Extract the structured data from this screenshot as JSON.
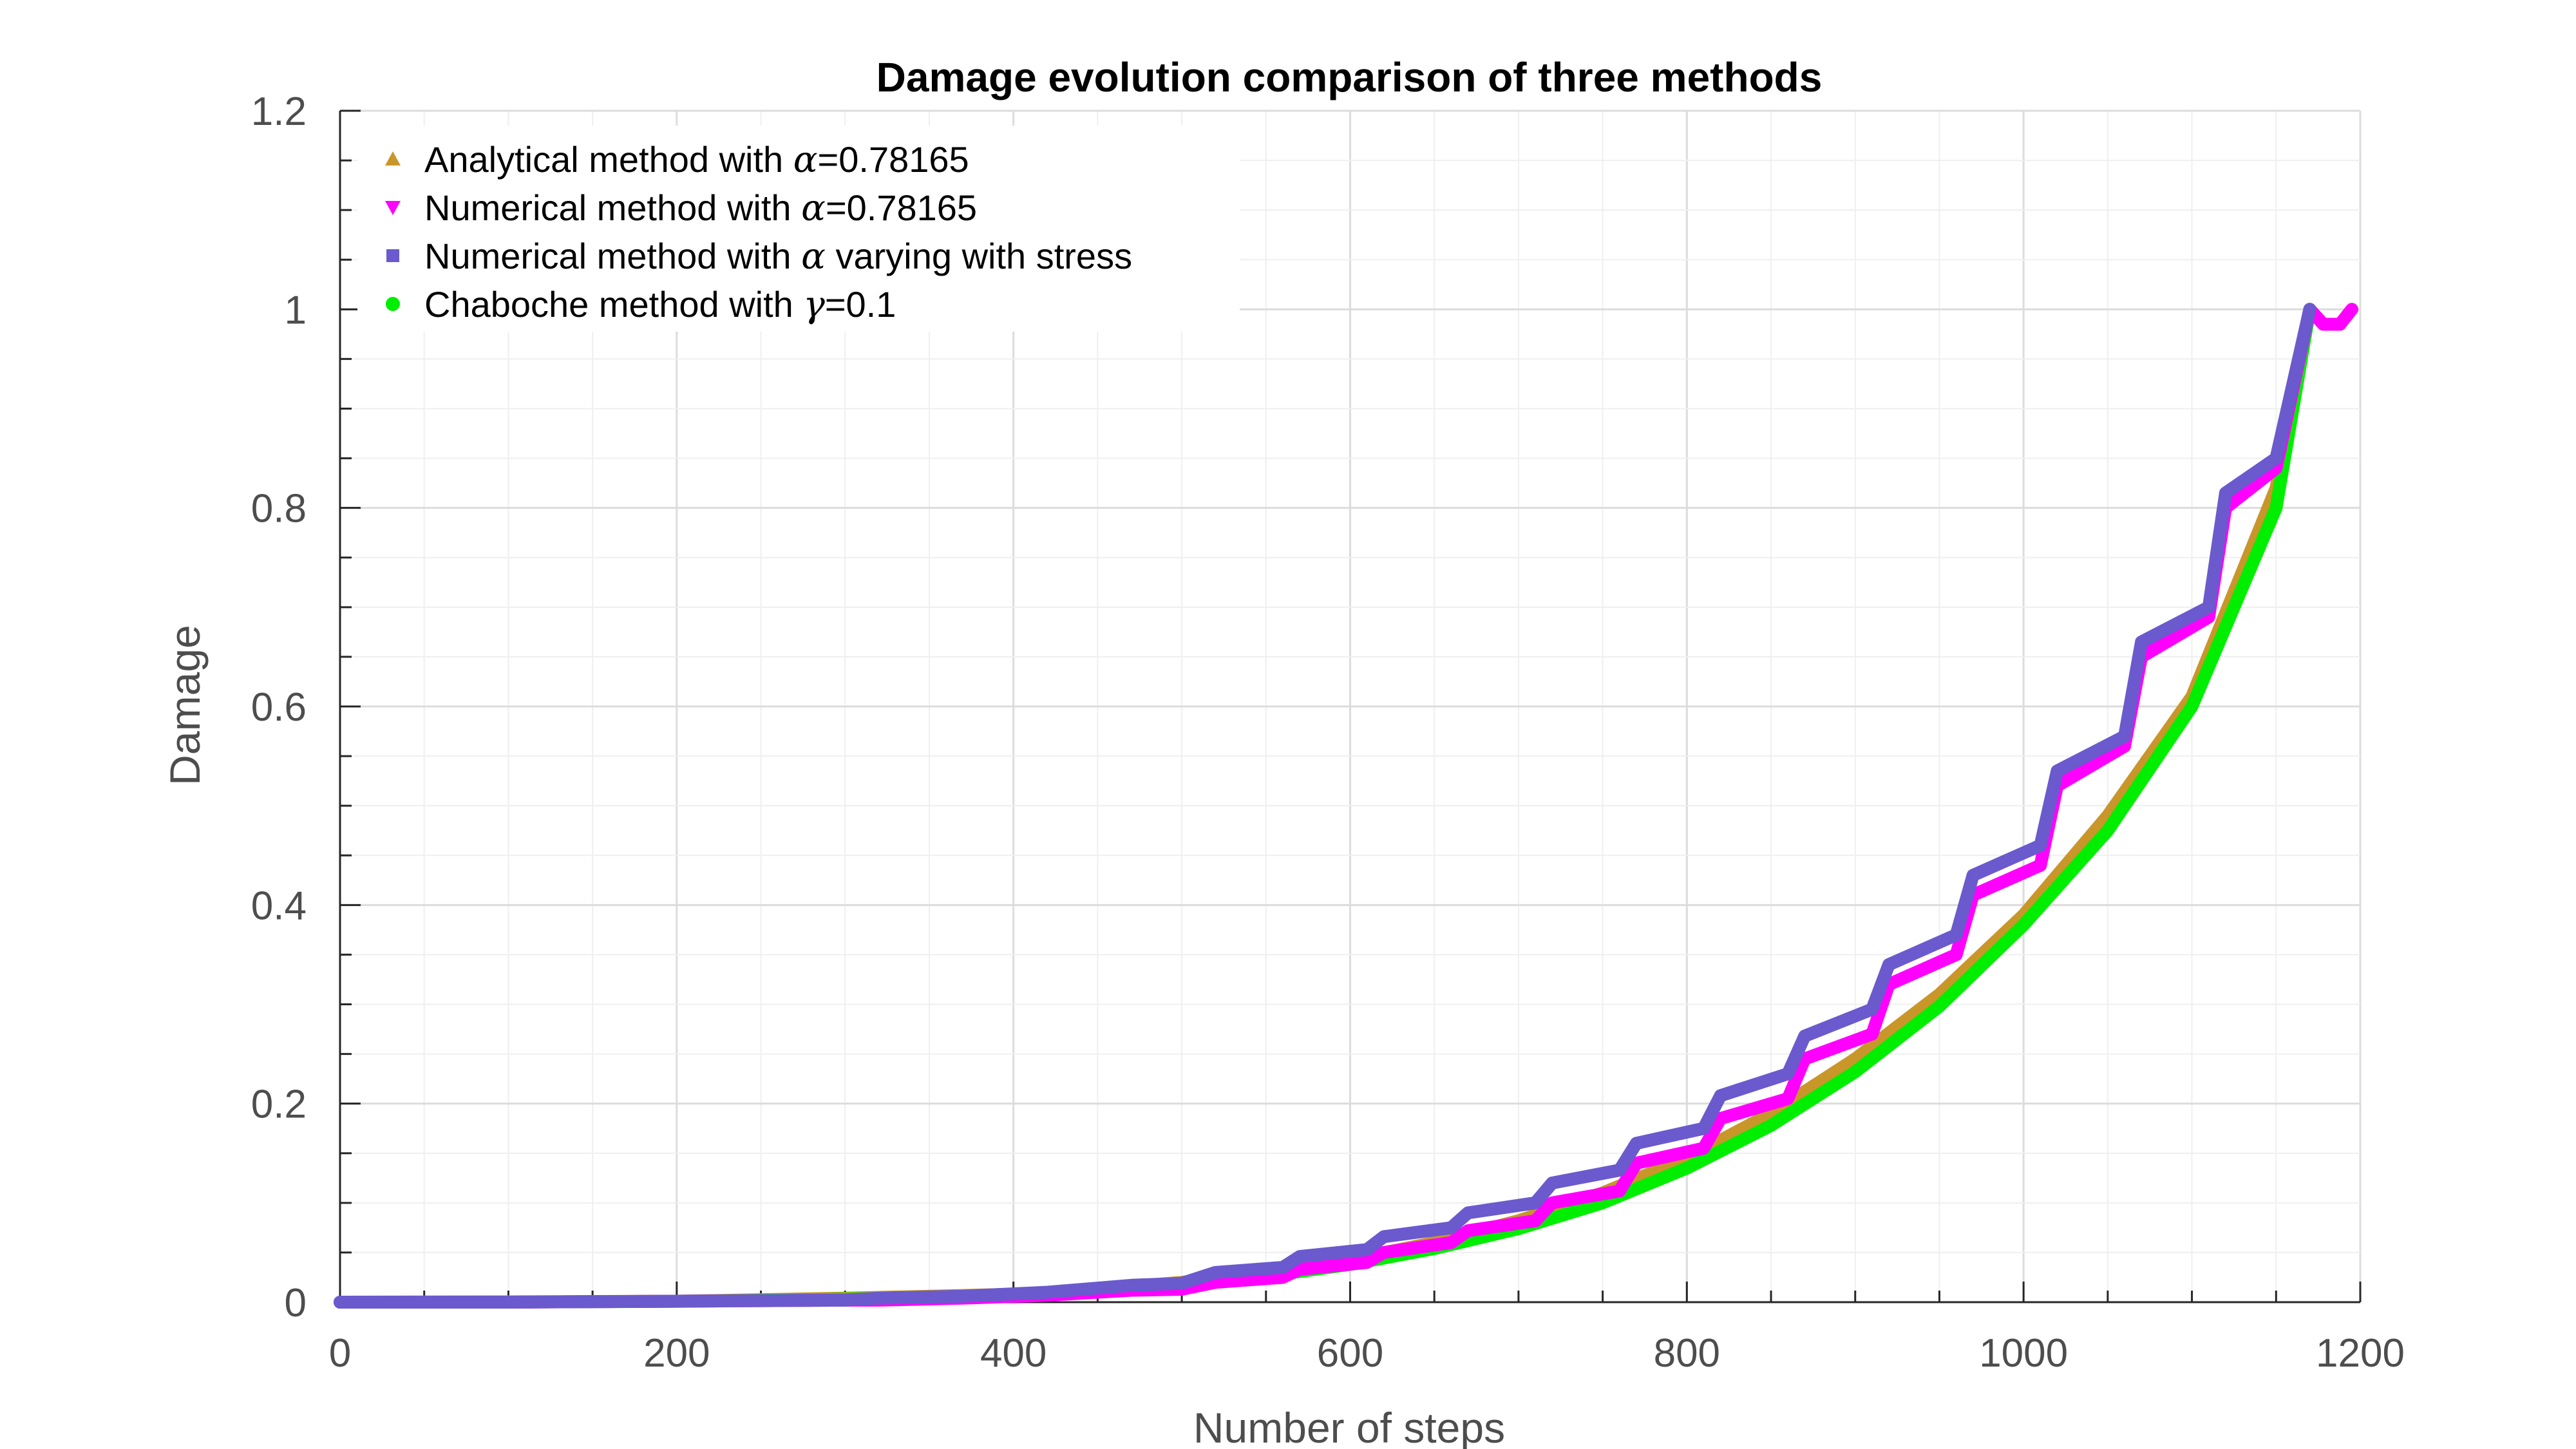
{
  "chart_data": {
    "type": "line",
    "title": "Damage evolution comparison of three methods",
    "xlabel": "Number of steps",
    "ylabel": "Damage",
    "xlim": [
      0,
      1200
    ],
    "ylim": [
      0,
      1.2
    ],
    "xticks": [
      "0",
      "200",
      "400",
      "600",
      "800",
      "1000",
      "1200"
    ],
    "yticks": [
      "0",
      "0.2",
      "0.4",
      "0.6",
      "0.8",
      "1",
      "1.2"
    ],
    "grid": true,
    "legend_position": "top-left",
    "series": [
      {
        "name_prefix": "Analytical method with ",
        "name_symbol": "α",
        "name_suffix": "=0.78165",
        "color": "#C9962A",
        "marker": "triangle-up",
        "points": [
          [
            0,
            0
          ],
          [
            100,
            0.0003
          ],
          [
            200,
            0.001
          ],
          [
            300,
            0.004
          ],
          [
            400,
            0.008
          ],
          [
            450,
            0.013
          ],
          [
            500,
            0.02
          ],
          [
            550,
            0.03
          ],
          [
            600,
            0.043
          ],
          [
            650,
            0.06
          ],
          [
            700,
            0.082
          ],
          [
            750,
            0.11
          ],
          [
            800,
            0.145
          ],
          [
            850,
            0.19
          ],
          [
            900,
            0.245
          ],
          [
            950,
            0.31
          ],
          [
            1000,
            0.39
          ],
          [
            1050,
            0.49
          ],
          [
            1100,
            0.61
          ],
          [
            1150,
            0.82
          ],
          [
            1170,
            1.0
          ]
        ]
      },
      {
        "name_prefix": "Numerical method with ",
        "name_symbol": "α",
        "name_suffix": "=0.78165",
        "color": "#FF00FF",
        "marker": "triangle-down",
        "points": [
          [
            0,
            0
          ],
          [
            100,
            0
          ],
          [
            200,
            0.001
          ],
          [
            300,
            0.002
          ],
          [
            320,
            0.002
          ],
          [
            370,
            0.004
          ],
          [
            420,
            0.007
          ],
          [
            470,
            0.012
          ],
          [
            500,
            0.013
          ],
          [
            520,
            0.02
          ],
          [
            560,
            0.025
          ],
          [
            570,
            0.033
          ],
          [
            610,
            0.04
          ],
          [
            620,
            0.05
          ],
          [
            660,
            0.06
          ],
          [
            670,
            0.072
          ],
          [
            710,
            0.082
          ],
          [
            720,
            0.1
          ],
          [
            760,
            0.112
          ],
          [
            770,
            0.14
          ],
          [
            810,
            0.155
          ],
          [
            820,
            0.185
          ],
          [
            860,
            0.205
          ],
          [
            870,
            0.245
          ],
          [
            910,
            0.27
          ],
          [
            920,
            0.32
          ],
          [
            960,
            0.35
          ],
          [
            970,
            0.41
          ],
          [
            1010,
            0.44
          ],
          [
            1020,
            0.52
          ],
          [
            1060,
            0.56
          ],
          [
            1070,
            0.65
          ],
          [
            1110,
            0.69
          ],
          [
            1120,
            0.8
          ],
          [
            1150,
            0.84
          ],
          [
            1170,
            1.0
          ],
          [
            1178,
            0.985
          ],
          [
            1188,
            0.985
          ],
          [
            1195,
            1.0
          ]
        ]
      },
      {
        "name_prefix": "Numerical method with ",
        "name_symbol": "α",
        "name_suffix": " varying with stress",
        "color": "#6A5ACD",
        "marker": "square",
        "points": [
          [
            0,
            0
          ],
          [
            100,
            0
          ],
          [
            200,
            0.001
          ],
          [
            300,
            0.002
          ],
          [
            320,
            0.004
          ],
          [
            370,
            0.006
          ],
          [
            420,
            0.01
          ],
          [
            470,
            0.017
          ],
          [
            500,
            0.019
          ],
          [
            520,
            0.03
          ],
          [
            560,
            0.035
          ],
          [
            570,
            0.046
          ],
          [
            610,
            0.053
          ],
          [
            620,
            0.066
          ],
          [
            660,
            0.075
          ],
          [
            670,
            0.09
          ],
          [
            710,
            0.1
          ],
          [
            720,
            0.12
          ],
          [
            760,
            0.133
          ],
          [
            770,
            0.16
          ],
          [
            810,
            0.175
          ],
          [
            820,
            0.208
          ],
          [
            860,
            0.23
          ],
          [
            870,
            0.268
          ],
          [
            910,
            0.295
          ],
          [
            920,
            0.34
          ],
          [
            960,
            0.37
          ],
          [
            970,
            0.43
          ],
          [
            1010,
            0.46
          ],
          [
            1020,
            0.535
          ],
          [
            1060,
            0.57
          ],
          [
            1070,
            0.665
          ],
          [
            1110,
            0.7
          ],
          [
            1120,
            0.815
          ],
          [
            1150,
            0.85
          ],
          [
            1170,
            1.0
          ]
        ]
      },
      {
        "name_prefix": "Chaboche method with ",
        "name_symbol": "γ",
        "name_suffix": "=0.1",
        "color": "#00EE00",
        "marker": "circle",
        "points": [
          [
            0,
            0
          ],
          [
            100,
            0.0002
          ],
          [
            200,
            0.0008
          ],
          [
            300,
            0.003
          ],
          [
            400,
            0.007
          ],
          [
            450,
            0.011
          ],
          [
            500,
            0.017
          ],
          [
            550,
            0.026
          ],
          [
            600,
            0.038
          ],
          [
            650,
            0.054
          ],
          [
            700,
            0.074
          ],
          [
            750,
            0.1
          ],
          [
            800,
            0.135
          ],
          [
            850,
            0.178
          ],
          [
            900,
            0.232
          ],
          [
            950,
            0.298
          ],
          [
            1000,
            0.38
          ],
          [
            1050,
            0.475
          ],
          [
            1100,
            0.6
          ],
          [
            1150,
            0.8
          ],
          [
            1170,
            1.0
          ]
        ]
      }
    ]
  }
}
